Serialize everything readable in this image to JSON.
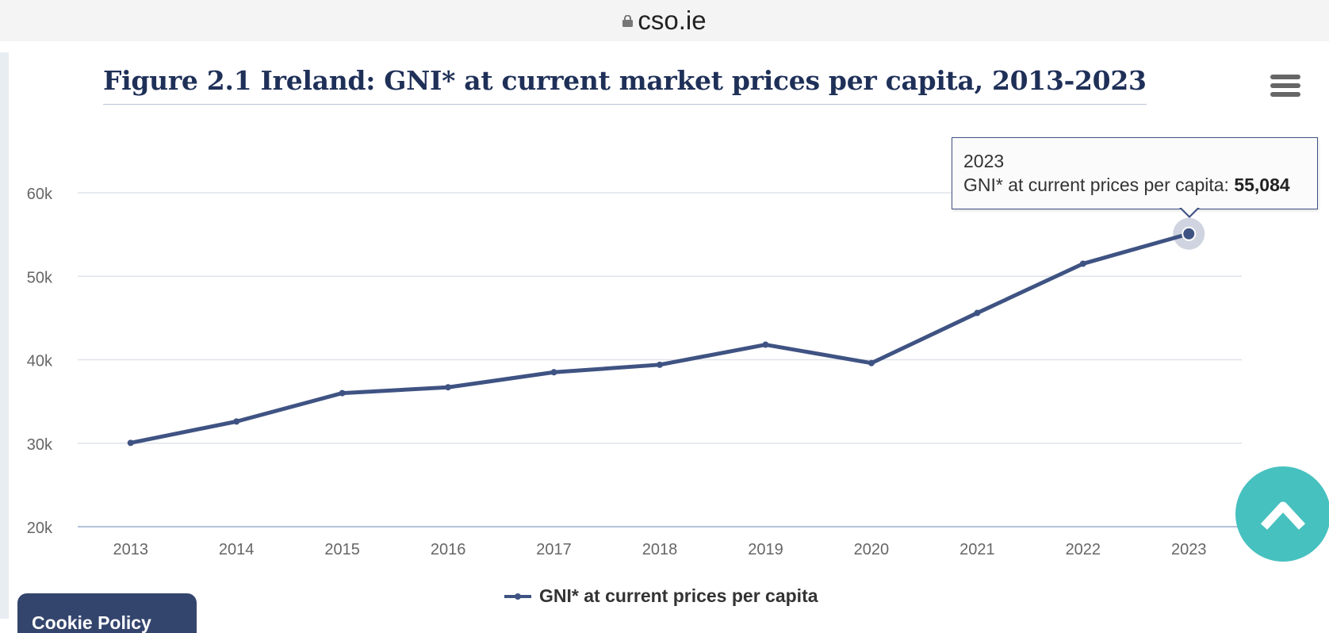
{
  "browser": {
    "url": "cso.ie"
  },
  "menu_icon": "hamburger-menu-icon",
  "tooltip": {
    "year": "2023",
    "label": "GNI* at current prices per capita:",
    "value": "55,084"
  },
  "bottom_button": {
    "label": "Cookie Policy"
  },
  "colors": {
    "series": "#3f5383",
    "title": "#1f3058",
    "scroll_button": "#46c1bf",
    "grid": "#dfe3ea"
  },
  "chart_data": {
    "type": "line",
    "title": "Figure 2.1 Ireland: GNI* at current market prices per capita, 2013-2023",
    "xlabel": "",
    "ylabel": "",
    "x": [
      "2013",
      "2014",
      "2015",
      "2016",
      "2017",
      "2018",
      "2019",
      "2020",
      "2021",
      "2022",
      "2023"
    ],
    "series": [
      {
        "name": "GNI* at current prices per capita",
        "values": [
          30040,
          32600,
          36000,
          36700,
          38500,
          39400,
          41800,
          39600,
          45600,
          51500,
          55084
        ]
      }
    ],
    "ylim": [
      20000,
      60000
    ],
    "yticks": [
      20000,
      30000,
      40000,
      50000,
      60000
    ],
    "ytick_labels": [
      "20k",
      "30k",
      "40k",
      "50k",
      "60k"
    ],
    "grid": true,
    "legend": "bottom-center",
    "highlighted_point": "2023"
  }
}
